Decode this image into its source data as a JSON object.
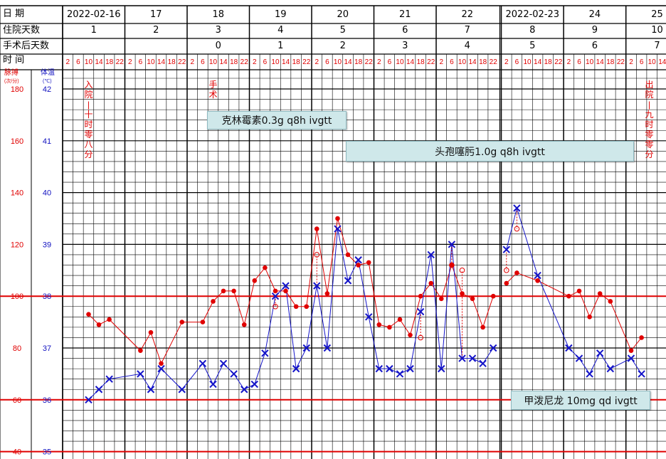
{
  "header": {
    "date_label": "日    期",
    "dates": [
      "2022-02-16",
      "17",
      "18",
      "19",
      "20",
      "21",
      "22",
      "2022-02-23",
      "24",
      "25"
    ],
    "hosp_day_label": "住院天数",
    "hosp_days": [
      "1",
      "2",
      "3",
      "4",
      "5",
      "6",
      "7",
      "8",
      "9",
      "10"
    ],
    "postop_label": "手术后天数",
    "postop_days": [
      "",
      "",
      "0",
      "1",
      "2",
      "3",
      "4",
      "5",
      "6",
      "7"
    ],
    "time_label": "时    间",
    "hours": [
      "2",
      "6",
      "10",
      "14",
      "18",
      "22"
    ]
  },
  "axes": {
    "pulse_title": "脉搏",
    "pulse_unit": "(次/分)",
    "temp_title": "体温",
    "temp_unit": "(℃)",
    "pulse_ticks": [
      "180",
      "160",
      "140",
      "120",
      "100",
      "80",
      "60",
      "40"
    ],
    "temp_ticks": [
      "42",
      "41",
      "40",
      "39",
      "38",
      "37",
      "36",
      "35"
    ]
  },
  "events": {
    "admission": "入院—十时零八分",
    "surgery": "手术",
    "discharge": "出院—九时零零分"
  },
  "drugs": {
    "drug1": "克林霉素0.3g q8h ivgtt",
    "drug2": "头孢噻肟1.0g q8h ivgtt",
    "drug3": "甲泼尼龙 10mg qd ivgtt"
  },
  "colors": {
    "pulse": "#e00000",
    "temperature": "#1414c8",
    "grid": "#000000",
    "reference_line": "#e00000"
  },
  "chart_data": {
    "type": "line",
    "x_unit": "day index + hour/24 (day 0 = 2022-02-16)",
    "temp_range": [
      35,
      42
    ],
    "pulse_range": [
      40,
      180
    ],
    "reference_lines": {
      "temperature": [
        38,
        36,
        35
      ]
    },
    "series": [
      {
        "name": "体温",
        "marker": "x",
        "points": [
          [
            0.417,
            36.0
          ],
          [
            0.583,
            36.2
          ],
          [
            0.75,
            36.4
          ],
          [
            1.25,
            36.5
          ],
          [
            1.417,
            36.2
          ],
          [
            1.583,
            36.6
          ],
          [
            1.917,
            36.2
          ],
          [
            2.25,
            36.7
          ],
          [
            2.417,
            36.3
          ],
          [
            2.583,
            36.7
          ],
          [
            2.75,
            36.5
          ],
          [
            2.917,
            36.2
          ],
          [
            3.083,
            36.3
          ],
          [
            3.25,
            36.9
          ],
          [
            3.417,
            38.0
          ],
          [
            3.583,
            38.2
          ],
          [
            3.75,
            36.6
          ],
          [
            3.917,
            37.0
          ],
          [
            4.083,
            38.2
          ],
          [
            4.25,
            37.0
          ],
          [
            4.417,
            39.3
          ],
          [
            4.583,
            38.3
          ],
          [
            4.75,
            38.7
          ],
          [
            4.917,
            37.6
          ],
          [
            5.083,
            36.6
          ],
          [
            5.25,
            36.6
          ],
          [
            5.417,
            36.5
          ],
          [
            5.583,
            36.6
          ],
          [
            5.75,
            37.7
          ],
          [
            5.917,
            38.8
          ],
          [
            6.083,
            36.6
          ],
          [
            6.25,
            39.0
          ],
          [
            6.417,
            36.8
          ],
          [
            6.583,
            36.8
          ],
          [
            6.75,
            36.7
          ],
          [
            6.917,
            37.0
          ],
          [
            7.083,
            38.9
          ],
          [
            7.25,
            39.7
          ],
          [
            7.583,
            38.4
          ],
          [
            8.083,
            37.0
          ],
          [
            8.25,
            36.8
          ],
          [
            8.417,
            36.5
          ],
          [
            8.583,
            36.9
          ],
          [
            8.75,
            36.6
          ],
          [
            9.083,
            36.8
          ],
          [
            9.25,
            36.5
          ]
        ]
      },
      {
        "name": "脉搏",
        "marker": "dot",
        "points": [
          [
            0.417,
            93
          ],
          [
            0.583,
            89
          ],
          [
            0.75,
            91
          ],
          [
            1.25,
            79
          ],
          [
            1.417,
            86
          ],
          [
            1.583,
            74
          ],
          [
            1.917,
            90
          ],
          [
            2.25,
            90
          ],
          [
            2.417,
            98
          ],
          [
            2.583,
            102
          ],
          [
            2.75,
            102
          ],
          [
            2.917,
            89
          ],
          [
            3.083,
            106
          ],
          [
            3.25,
            111
          ],
          [
            3.417,
            102
          ],
          [
            3.583,
            102
          ],
          [
            3.75,
            96
          ],
          [
            3.917,
            96
          ],
          [
            4.083,
            126
          ],
          [
            4.25,
            101
          ],
          [
            4.417,
            130
          ],
          [
            4.583,
            116
          ],
          [
            4.75,
            112
          ],
          [
            4.917,
            113
          ],
          [
            5.083,
            89
          ],
          [
            5.25,
            88
          ],
          [
            5.417,
            91
          ],
          [
            5.583,
            85
          ],
          [
            5.75,
            100
          ],
          [
            5.917,
            105
          ],
          [
            6.083,
            99
          ],
          [
            6.25,
            112
          ],
          [
            6.417,
            101
          ],
          [
            6.583,
            99
          ],
          [
            6.75,
            88
          ],
          [
            6.917,
            100
          ],
          [
            7.083,
            105
          ],
          [
            7.25,
            109
          ],
          [
            7.583,
            106
          ],
          [
            8.083,
            100
          ],
          [
            8.25,
            102
          ],
          [
            8.417,
            92
          ],
          [
            8.583,
            101
          ],
          [
            8.75,
            98
          ],
          [
            9.083,
            79
          ],
          [
            9.25,
            84
          ]
        ]
      }
    ],
    "cooling_markers": [
      [
        3.417,
        37.8
      ],
      [
        4.083,
        38.8
      ],
      [
        5.75,
        37.2
      ],
      [
        6.25,
        38.6
      ],
      [
        6.417,
        38.5
      ],
      [
        7.083,
        38.5
      ],
      [
        7.25,
        39.3
      ]
    ]
  }
}
